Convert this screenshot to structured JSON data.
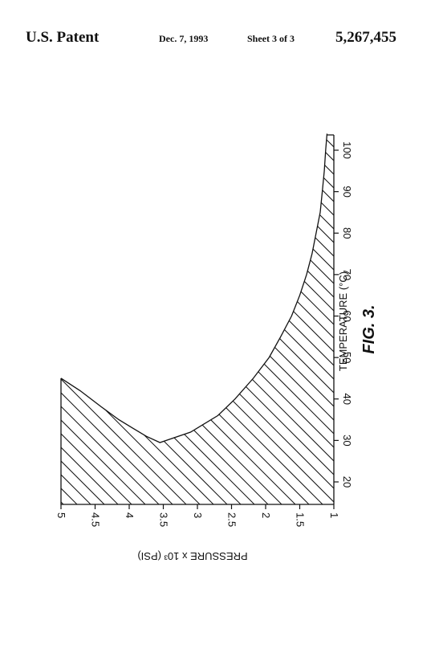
{
  "header": {
    "patent_label": "U.S. Patent",
    "date": "Dec. 7, 1993",
    "sheet": "Sheet 3 of 3",
    "patent_number": "5,267,455"
  },
  "figure": {
    "caption": "FIG. 3.",
    "rotation": "90deg-clockwise",
    "colors": {
      "ink": "#111111"
    }
  },
  "chart_data": {
    "type": "area",
    "xlabel": "TEMPERATURE (°C)",
    "ylabel": "PRESSURE x 10³ (PSI)",
    "xlim": [
      15,
      105
    ],
    "ylim": [
      1,
      5
    ],
    "x_ticks": [
      "20",
      "30",
      "40",
      "50",
      "60",
      "70",
      "80",
      "90",
      "100"
    ],
    "x_tick_values": [
      20,
      30,
      40,
      50,
      60,
      70,
      80,
      90,
      100
    ],
    "y_ticks": [
      "1",
      "1.5",
      "2",
      "2.5",
      "3",
      "3.5",
      "4",
      "4.5",
      "5"
    ],
    "y_tick_values": [
      1,
      1.5,
      2,
      2.5,
      3,
      3.5,
      4,
      4.5,
      5
    ],
    "fill": "diagonal-hatch",
    "grid": false,
    "boundary": {
      "x": [
        45,
        42,
        38,
        35,
        33,
        31,
        29.5,
        32,
        36,
        40,
        45,
        50,
        55,
        60,
        65,
        70,
        75,
        80,
        85,
        90,
        95,
        100,
        104
      ],
      "y": [
        5,
        4.72,
        4.4,
        4.15,
        3.95,
        3.75,
        3.55,
        3.1,
        2.7,
        2.45,
        2.18,
        1.95,
        1.78,
        1.62,
        1.5,
        1.4,
        1.32,
        1.26,
        1.2,
        1.17,
        1.14,
        1.12,
        1.1
      ]
    }
  }
}
